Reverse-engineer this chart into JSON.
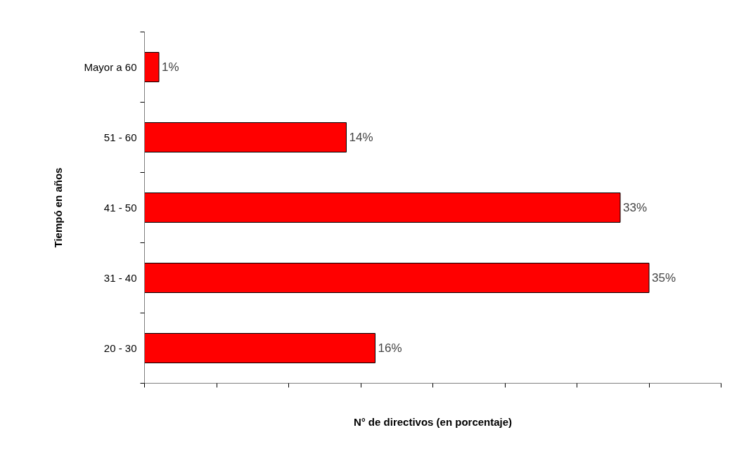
{
  "chart_data": {
    "type": "bar",
    "orientation": "horizontal",
    "xlabel": "N° de directivos (en porcentaje)",
    "ylabel": "Tiempó en años",
    "categories": [
      "Mayor a 60",
      "51 - 60",
      "41 - 50",
      "31 - 40",
      "20 - 30"
    ],
    "values": [
      1,
      14,
      33,
      35,
      16
    ],
    "value_labels": [
      "1%",
      "14%",
      "33%",
      "35%",
      "16%"
    ],
    "color": "#ff0000",
    "xlim": [
      0,
      40
    ],
    "xticks": [
      {
        "value": 0,
        "label": null
      },
      {
        "value": 5,
        "label": null
      },
      {
        "value": 10,
        "label": null
      },
      {
        "value": 15,
        "label": null
      },
      {
        "value": 20,
        "label": null
      },
      {
        "value": 25,
        "label": null
      },
      {
        "value": 30,
        "label": null
      },
      {
        "value": 35,
        "label": null
      },
      {
        "value": 40,
        "label": null
      }
    ],
    "grid": false
  }
}
